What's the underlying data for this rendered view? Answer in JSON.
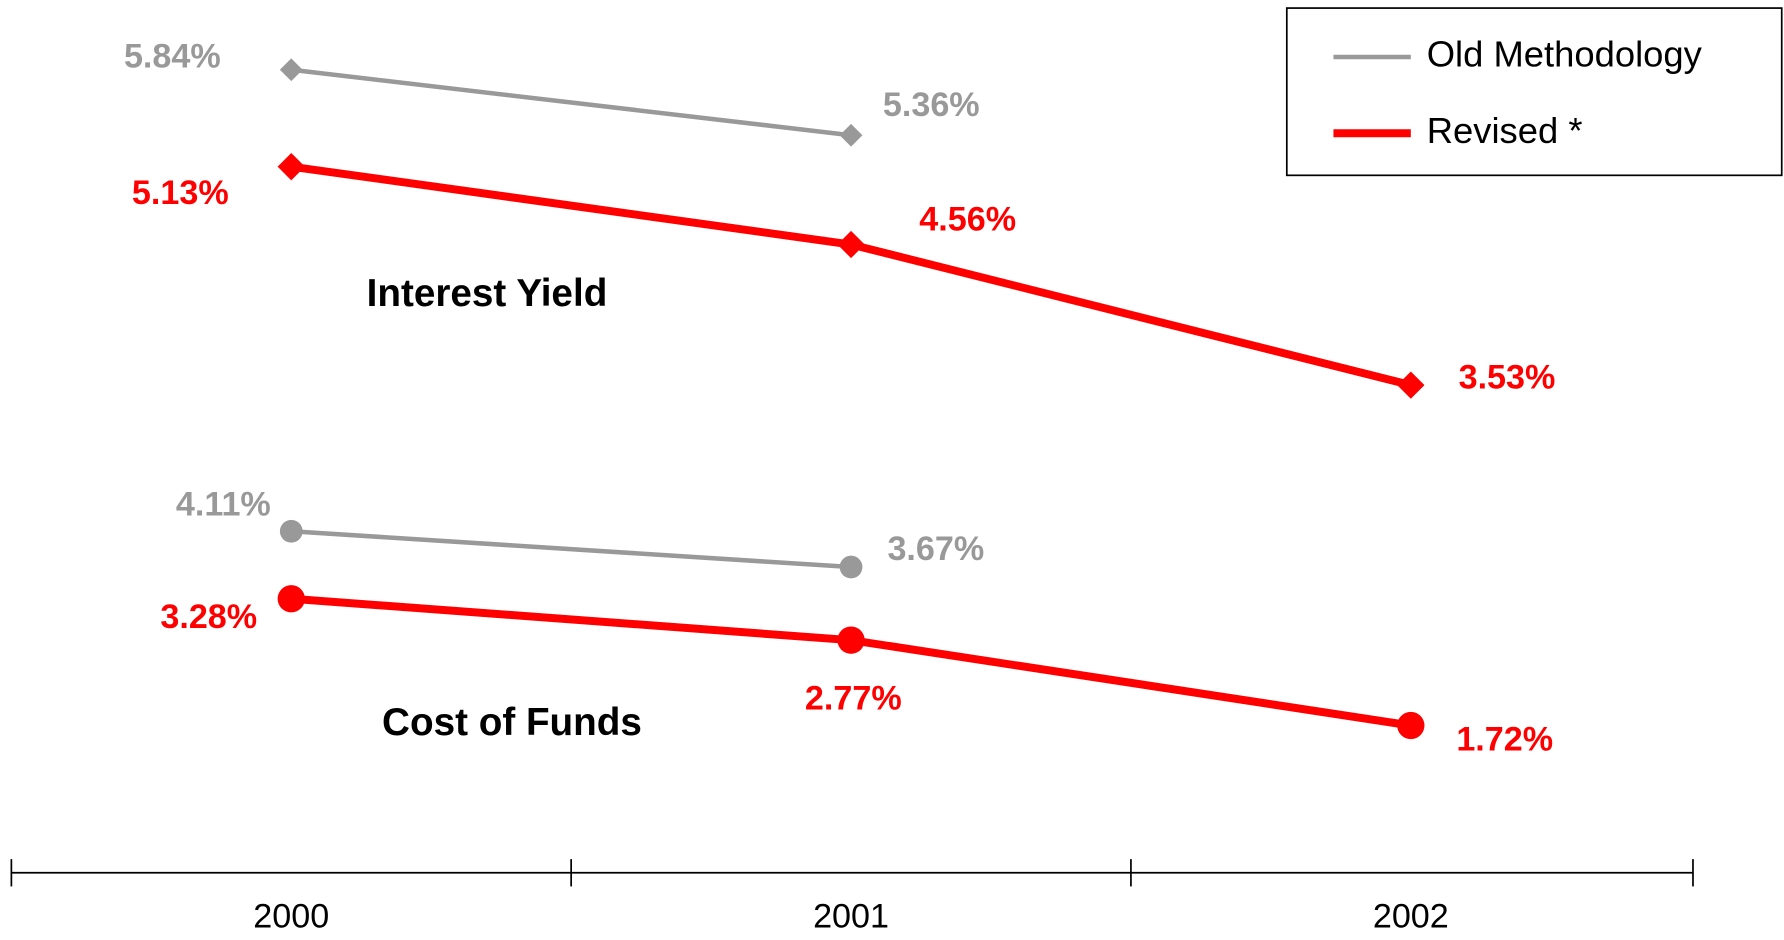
{
  "chart_data": [
    {
      "type": "line",
      "label": "Interest Yield",
      "marker": "diamond",
      "categories": [
        "2000",
        "2001",
        "2002"
      ],
      "ylim": [
        3,
        6
      ],
      "series": [
        {
          "name": "Old Methodology",
          "color": "#999999",
          "values": [
            5.84,
            5.36,
            null
          ],
          "value_labels": [
            "5.84%",
            "5.36%",
            null
          ]
        },
        {
          "name": "Revised *",
          "color": "#ff0000",
          "values": [
            5.13,
            4.56,
            3.53
          ],
          "value_labels": [
            "5.13%",
            "4.56%",
            "3.53%"
          ]
        }
      ]
    },
    {
      "type": "line",
      "label": "Cost of Funds",
      "marker": "circle",
      "categories": [
        "2000",
        "2001",
        "2002"
      ],
      "ylim": [
        1,
        4.5
      ],
      "series": [
        {
          "name": "Old Methodology",
          "color": "#999999",
          "values": [
            4.11,
            3.67,
            null
          ],
          "value_labels": [
            "4.11%",
            "3.67%",
            null
          ]
        },
        {
          "name": "Revised *",
          "color": "#ff0000",
          "values": [
            3.28,
            2.77,
            1.72
          ],
          "value_labels": [
            "3.28%",
            "2.77%",
            "1.72%"
          ]
        }
      ]
    }
  ]
}
